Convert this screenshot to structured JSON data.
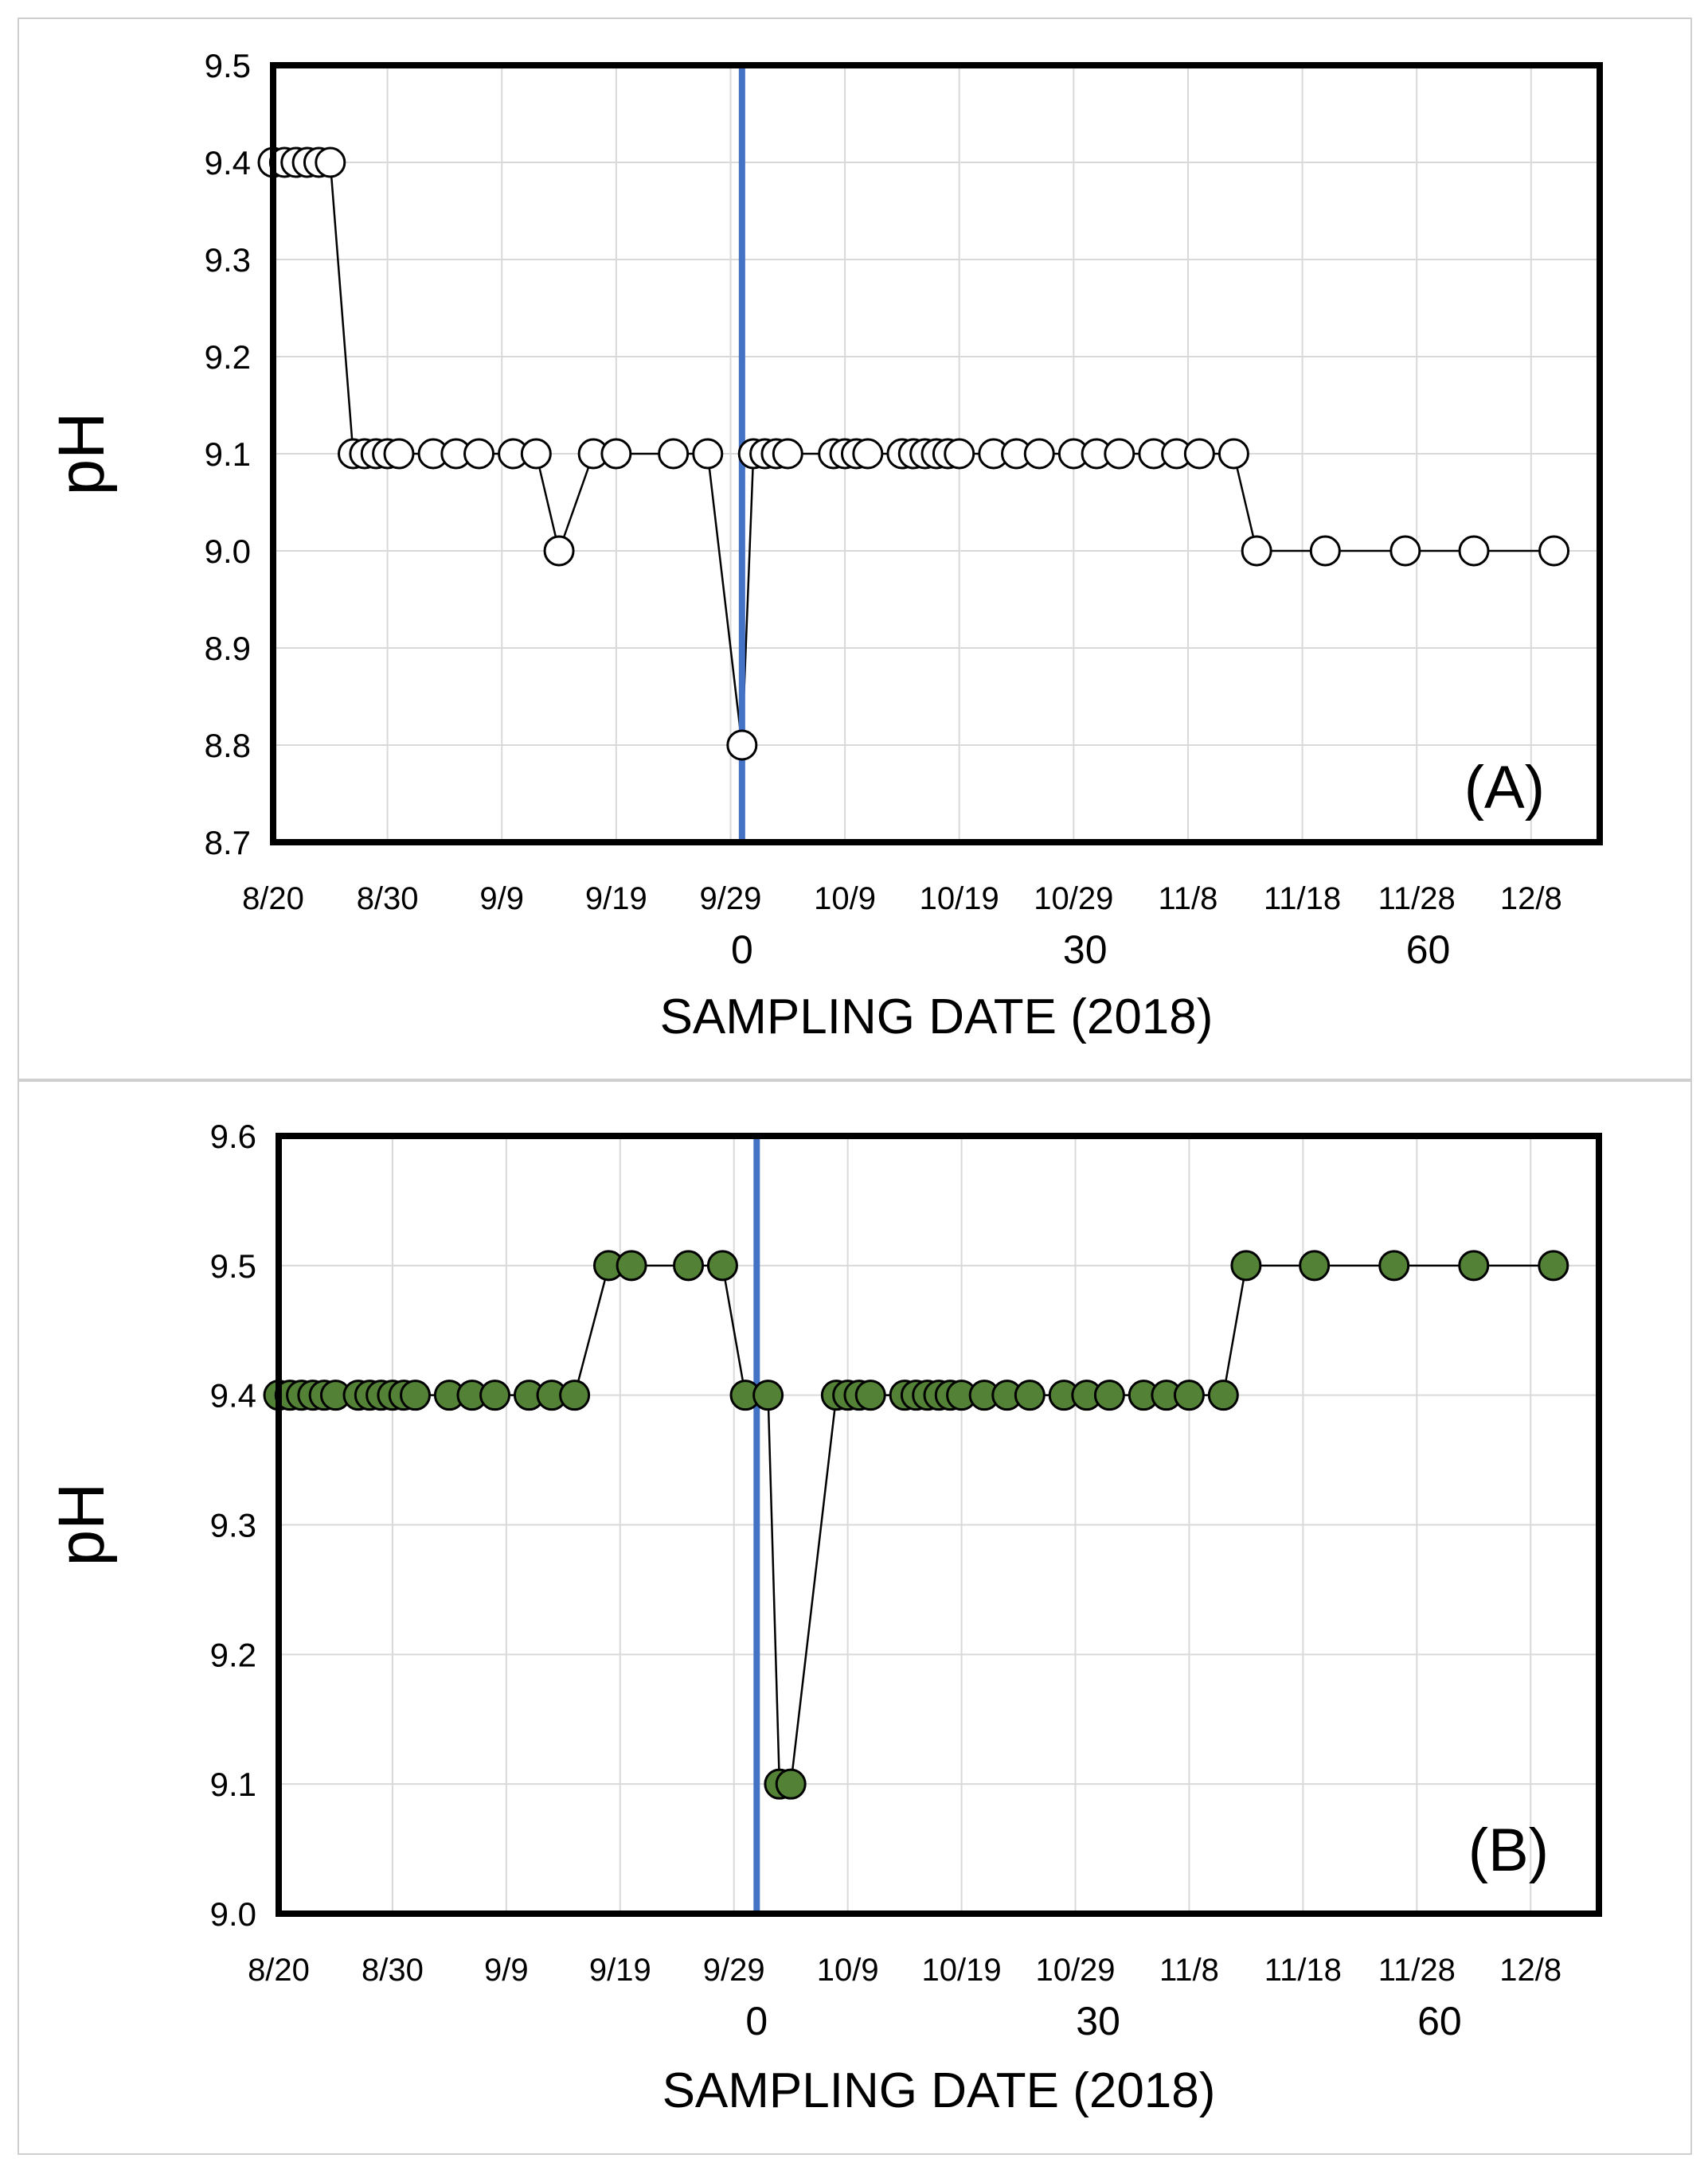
{
  "chart_data": [
    {
      "panel_label": "(A)",
      "type": "line",
      "ylabel": "pH",
      "xlabel": "SAMPLING DATE (2018)",
      "y_ticks": [
        "8.7",
        "8.8",
        "8.9",
        "9.0",
        "9.1",
        "9.2",
        "9.3",
        "9.4",
        "9.5"
      ],
      "ylim": [
        8.7,
        9.5
      ],
      "date_ticks": [
        "8/20",
        "8/30",
        "9/9",
        "9/19",
        "9/29",
        "10/9",
        "10/19",
        "10/29",
        "11/8",
        "11/18",
        "11/28",
        "12/8"
      ],
      "day_ticks": [
        "0",
        "30",
        "60"
      ],
      "xlim": [
        "2018-08-20",
        "2018-12-14"
      ],
      "event_date": "2018-09-30",
      "marker_fill": "#ffffff",
      "event_line_color": "#4472c4",
      "grid": true,
      "series": [
        {
          "x": [
            "2018-08-20",
            "2018-08-21",
            "2018-08-22",
            "2018-08-23",
            "2018-08-24",
            "2018-08-25",
            "2018-08-27",
            "2018-08-28",
            "2018-08-29",
            "2018-08-30",
            "2018-08-31",
            "2018-09-03",
            "2018-09-05",
            "2018-09-07",
            "2018-09-10",
            "2018-09-12",
            "2018-09-14",
            "2018-09-17",
            "2018-09-19",
            "2018-09-24",
            "2018-09-27",
            "2018-09-30",
            "2018-10-01",
            "2018-10-02",
            "2018-10-03",
            "2018-10-04",
            "2018-10-08",
            "2018-10-09",
            "2018-10-10",
            "2018-10-11",
            "2018-10-14",
            "2018-10-15",
            "2018-10-16",
            "2018-10-17",
            "2018-10-18",
            "2018-10-19",
            "2018-10-22",
            "2018-10-24",
            "2018-10-26",
            "2018-10-29",
            "2018-10-31",
            "2018-11-02",
            "2018-11-05",
            "2018-11-07",
            "2018-11-09",
            "2018-11-12",
            "2018-11-14",
            "2018-11-20",
            "2018-11-27",
            "2018-12-03",
            "2018-12-10"
          ],
          "y": [
            9.4,
            9.4,
            9.4,
            9.4,
            9.4,
            9.4,
            9.1,
            9.1,
            9.1,
            9.1,
            9.1,
            9.1,
            9.1,
            9.1,
            9.1,
            9.1,
            9.0,
            9.1,
            9.1,
            9.1,
            9.1,
            8.8,
            9.1,
            9.1,
            9.1,
            9.1,
            9.1,
            9.1,
            9.1,
            9.1,
            9.1,
            9.1,
            9.1,
            9.1,
            9.1,
            9.1,
            9.1,
            9.1,
            9.1,
            9.1,
            9.1,
            9.1,
            9.1,
            9.1,
            9.1,
            9.1,
            9.0,
            9.0,
            9.0,
            9.0,
            9.0
          ]
        }
      ]
    },
    {
      "panel_label": "(B)",
      "type": "line",
      "ylabel": "pH",
      "xlabel": "SAMPLING DATE (2018)",
      "y_ticks": [
        "9.0",
        "9.1",
        "9.2",
        "9.3",
        "9.4",
        "9.5",
        "9.6"
      ],
      "ylim": [
        9.0,
        9.6
      ],
      "date_ticks": [
        "8/20",
        "8/30",
        "9/9",
        "9/19",
        "9/29",
        "10/9",
        "10/19",
        "10/29",
        "11/8",
        "11/18",
        "11/28",
        "12/8"
      ],
      "day_ticks": [
        "0",
        "30",
        "60"
      ],
      "xlim": [
        "2018-08-20",
        "2018-12-14"
      ],
      "event_date": "2018-10-01",
      "marker_fill": "#538135",
      "event_line_color": "#4472c4",
      "grid": true,
      "series": [
        {
          "x": [
            "2018-08-20",
            "2018-08-21",
            "2018-08-22",
            "2018-08-23",
            "2018-08-24",
            "2018-08-25",
            "2018-08-27",
            "2018-08-28",
            "2018-08-29",
            "2018-08-30",
            "2018-08-31",
            "2018-09-01",
            "2018-09-04",
            "2018-09-06",
            "2018-09-08",
            "2018-09-11",
            "2018-09-13",
            "2018-09-15",
            "2018-09-18",
            "2018-09-20",
            "2018-09-25",
            "2018-09-28",
            "2018-09-30",
            "2018-10-02",
            "2018-10-03",
            "2018-10-04",
            "2018-10-08",
            "2018-10-09",
            "2018-10-10",
            "2018-10-11",
            "2018-10-14",
            "2018-10-15",
            "2018-10-16",
            "2018-10-17",
            "2018-10-18",
            "2018-10-19",
            "2018-10-21",
            "2018-10-23",
            "2018-10-25",
            "2018-10-28",
            "2018-10-30",
            "2018-11-01",
            "2018-11-04",
            "2018-11-06",
            "2018-11-08",
            "2018-11-11",
            "2018-11-13",
            "2018-11-19",
            "2018-11-26",
            "2018-12-03",
            "2018-12-10"
          ],
          "y": [
            9.4,
            9.4,
            9.4,
            9.4,
            9.4,
            9.4,
            9.4,
            9.4,
            9.4,
            9.4,
            9.4,
            9.4,
            9.4,
            9.4,
            9.4,
            9.4,
            9.4,
            9.4,
            9.5,
            9.5,
            9.5,
            9.5,
            9.4,
            9.4,
            9.1,
            9.1,
            9.4,
            9.4,
            9.4,
            9.4,
            9.4,
            9.4,
            9.4,
            9.4,
            9.4,
            9.4,
            9.4,
            9.4,
            9.4,
            9.4,
            9.4,
            9.4,
            9.4,
            9.4,
            9.4,
            9.4,
            9.5,
            9.5,
            9.5,
            9.5,
            9.5
          ]
        }
      ]
    }
  ]
}
